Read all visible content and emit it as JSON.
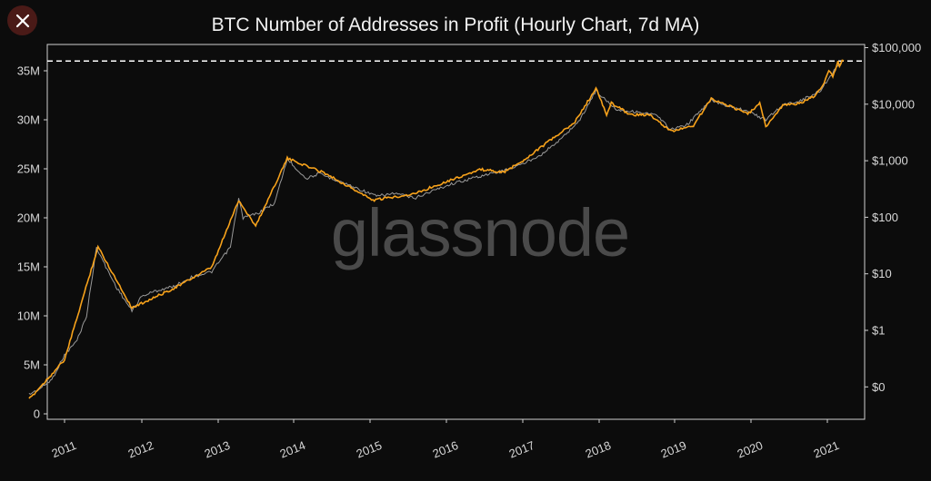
{
  "close_button": {
    "label": "×",
    "icon": "close-icon"
  },
  "watermark": "glassnode",
  "colors": {
    "background": "#0c0c0c",
    "addresses_line": "#9a9a9a",
    "price_line": "#f7a21b",
    "ath_line": "#ffffff",
    "close_button_bg": "#4a1a17"
  },
  "chart_data": {
    "type": "line",
    "title": "BTC Number of Addresses in Profit (Hourly Chart, 7d MA)",
    "xlabel": "",
    "ylabel": "",
    "x_ticks": [
      "2011",
      "2012",
      "2013",
      "2014",
      "2015",
      "2016",
      "2017",
      "2018",
      "2019",
      "2020",
      "2021"
    ],
    "y_left_ticks": [
      "0",
      "5M",
      "10M",
      "15M",
      "20M",
      "25M",
      "30M",
      "35M"
    ],
    "y_left_range": [
      0,
      37000000
    ],
    "y_right_ticks": [
      "$0",
      "$1",
      "$10",
      "$100",
      "$1,000",
      "$10,000",
      "$100,000"
    ],
    "y_right_scale": "log",
    "grid": false,
    "legend": "none",
    "reference_line": {
      "style": "dashed",
      "value": 36000000,
      "axis": "left"
    },
    "series": [
      {
        "axis": "left",
        "color": "#9a9a9a",
        "points": [
          [
            "2010-07-15",
            2000000
          ],
          [
            "2010-09-01",
            2500000
          ],
          [
            "2010-11-01",
            3500000
          ],
          [
            "2011-01-01",
            6000000
          ],
          [
            "2011-03-01",
            7500000
          ],
          [
            "2011-04-15",
            10000000
          ],
          [
            "2011-06-01",
            17000000
          ],
          [
            "2011-07-15",
            15000000
          ],
          [
            "2011-09-01",
            13000000
          ],
          [
            "2011-11-15",
            10500000
          ],
          [
            "2012-01-01",
            12000000
          ],
          [
            "2012-03-01",
            12500000
          ],
          [
            "2012-06-01",
            13000000
          ],
          [
            "2012-09-01",
            14000000
          ],
          [
            "2012-12-01",
            14500000
          ],
          [
            "2013-03-01",
            17000000
          ],
          [
            "2013-04-10",
            22000000
          ],
          [
            "2013-05-01",
            20000000
          ],
          [
            "2013-07-15",
            20500000
          ],
          [
            "2013-10-01",
            21500000
          ],
          [
            "2013-12-01",
            26000000
          ],
          [
            "2014-01-15",
            25000000
          ],
          [
            "2014-03-01",
            24000000
          ],
          [
            "2014-05-01",
            24500000
          ],
          [
            "2014-08-01",
            23800000
          ],
          [
            "2014-11-01",
            23000000
          ],
          [
            "2015-02-01",
            22200000
          ],
          [
            "2015-05-01",
            22500000
          ],
          [
            "2015-08-01",
            22000000
          ],
          [
            "2015-11-01",
            22800000
          ],
          [
            "2016-02-01",
            23500000
          ],
          [
            "2016-06-01",
            24200000
          ],
          [
            "2016-10-01",
            24800000
          ],
          [
            "2017-01-01",
            25500000
          ],
          [
            "2017-04-01",
            26500000
          ],
          [
            "2017-07-01",
            28000000
          ],
          [
            "2017-10-01",
            30000000
          ],
          [
            "2017-12-17",
            33000000
          ],
          [
            "2018-02-01",
            32000000
          ],
          [
            "2018-04-01",
            31000000
          ],
          [
            "2018-07-01",
            30800000
          ],
          [
            "2018-10-01",
            30500000
          ],
          [
            "2018-12-15",
            29000000
          ],
          [
            "2019-03-01",
            29500000
          ],
          [
            "2019-06-25",
            32000000
          ],
          [
            "2019-09-01",
            31500000
          ],
          [
            "2019-12-01",
            31000000
          ],
          [
            "2020-03-12",
            30000000
          ],
          [
            "2020-06-01",
            31500000
          ],
          [
            "2020-09-01",
            32000000
          ],
          [
            "2020-12-01",
            33000000
          ],
          [
            "2021-01-15",
            34500000
          ],
          [
            "2021-02-20",
            35500000
          ],
          [
            "2021-03-15",
            36000000
          ]
        ]
      },
      {
        "axis": "right",
        "color": "#f7a21b",
        "points": [
          [
            "2010-07-15",
            0.06
          ],
          [
            "2011-01-01",
            0.3
          ],
          [
            "2011-06-08",
            30
          ],
          [
            "2011-11-15",
            2.5
          ],
          [
            "2012-06-01",
            5.5
          ],
          [
            "2012-12-01",
            13
          ],
          [
            "2013-04-10",
            200
          ],
          [
            "2013-07-01",
            70
          ],
          [
            "2013-12-01",
            1100
          ],
          [
            "2014-06-01",
            600
          ],
          [
            "2015-01-15",
            200
          ],
          [
            "2015-08-01",
            260
          ],
          [
            "2016-01-01",
            430
          ],
          [
            "2016-06-15",
            700
          ],
          [
            "2016-10-01",
            620
          ],
          [
            "2017-01-01",
            1000
          ],
          [
            "2017-06-01",
            2600
          ],
          [
            "2017-09-01",
            4500
          ],
          [
            "2017-12-17",
            19000
          ],
          [
            "2018-02-06",
            6500
          ],
          [
            "2018-03-01",
            10500
          ],
          [
            "2018-06-01",
            6500
          ],
          [
            "2018-09-01",
            6500
          ],
          [
            "2018-12-15",
            3300
          ],
          [
            "2019-04-01",
            4200
          ],
          [
            "2019-06-25",
            12500
          ],
          [
            "2019-09-01",
            10000
          ],
          [
            "2019-12-17",
            6700
          ],
          [
            "2020-02-12",
            10300
          ],
          [
            "2020-03-12",
            4000
          ],
          [
            "2020-06-01",
            9500
          ],
          [
            "2020-09-01",
            10500
          ],
          [
            "2020-11-01",
            14000
          ],
          [
            "2020-12-17",
            23000
          ],
          [
            "2021-01-08",
            41000
          ],
          [
            "2021-01-27",
            31000
          ],
          [
            "2021-02-21",
            57000
          ],
          [
            "2021-02-28",
            45000
          ],
          [
            "2021-03-13",
            61000
          ],
          [
            "2021-03-20",
            58000
          ]
        ]
      }
    ]
  }
}
